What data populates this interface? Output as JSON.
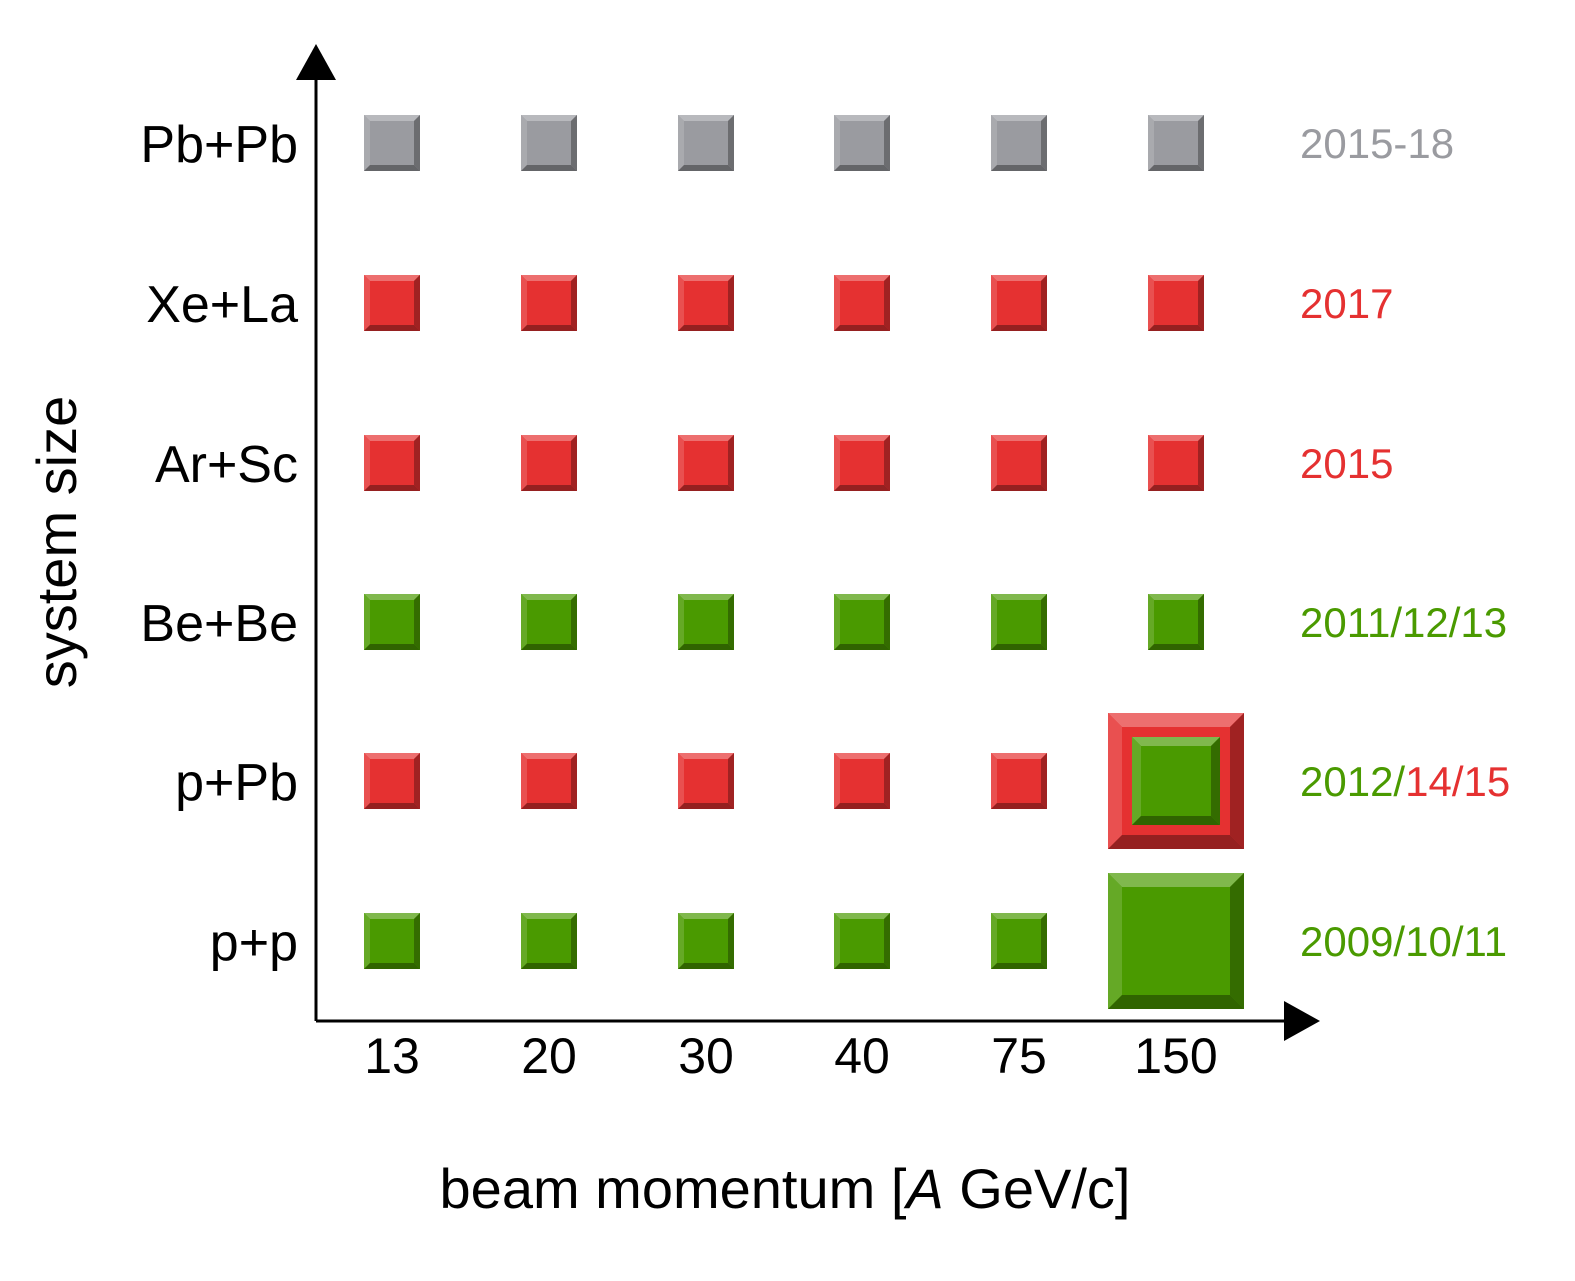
{
  "colors": {
    "gray": "#9a9ba0",
    "red": "#e53131",
    "green": "#4a9a00",
    "axis": "#000000"
  },
  "chart_data": {
    "type": "heatmap",
    "x_categories": [
      "13",
      "20",
      "30",
      "40",
      "75",
      "150"
    ],
    "y_categories": [
      "p+p",
      "p+Pb",
      "Be+Be",
      "Ar+Sc",
      "Xe+La",
      "Pb+Pb"
    ],
    "xlabel_prefix": "beam momentum [",
    "xlabel_italic": "A",
    "xlabel_suffix": " GeV/c]",
    "ylabel": "system size",
    "rows": [
      {
        "system": "p+p",
        "cells": [
          "green",
          "green",
          "green",
          "green",
          "green",
          "green"
        ],
        "large_150": true,
        "year_parts": [
          {
            "text": "2009/10/11",
            "color": "green"
          }
        ]
      },
      {
        "system": "p+Pb",
        "cells": [
          "red",
          "red",
          "red",
          "red",
          "red",
          "red+green"
        ],
        "large_150": true,
        "year_parts": [
          {
            "text": "2012/",
            "color": "green"
          },
          {
            "text": "14/15",
            "color": "red"
          }
        ]
      },
      {
        "system": "Be+Be",
        "cells": [
          "green",
          "green",
          "green",
          "green",
          "green",
          "green"
        ],
        "large_150": false,
        "year_parts": [
          {
            "text": "2011/12/13",
            "color": "green"
          }
        ]
      },
      {
        "system": "Ar+Sc",
        "cells": [
          "red",
          "red",
          "red",
          "red",
          "red",
          "red"
        ],
        "large_150": false,
        "year_parts": [
          {
            "text": "2015",
            "color": "red"
          }
        ]
      },
      {
        "system": "Xe+La",
        "cells": [
          "red",
          "red",
          "red",
          "red",
          "red",
          "red"
        ],
        "large_150": false,
        "year_parts": [
          {
            "text": "2017",
            "color": "red"
          }
        ]
      },
      {
        "system": "Pb+Pb",
        "cells": [
          "gray",
          "gray",
          "gray",
          "gray",
          "gray",
          "gray"
        ],
        "large_150": false,
        "year_parts": [
          {
            "text": "2015-18",
            "color": "gray"
          }
        ]
      }
    ]
  }
}
